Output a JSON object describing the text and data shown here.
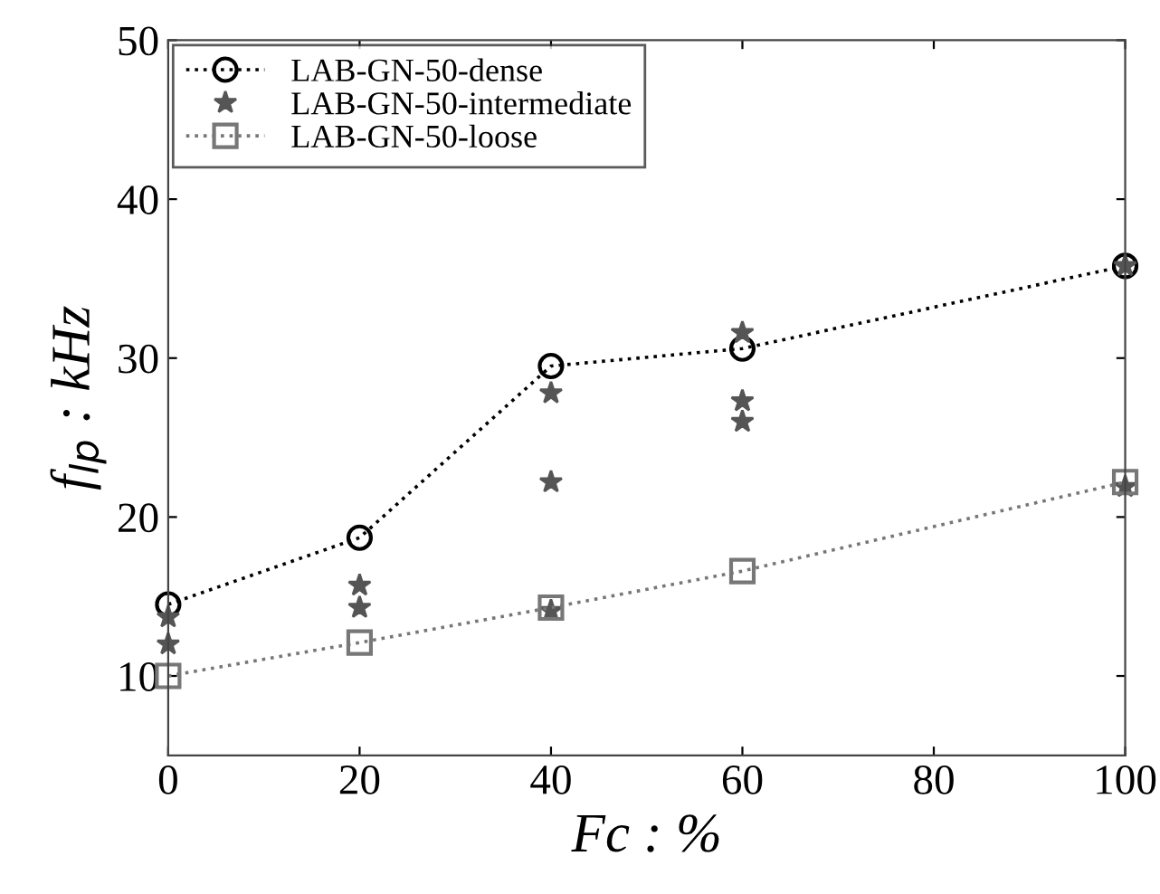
{
  "chart_data": {
    "type": "line",
    "xlabel": "Fc : %",
    "ylabel": "f$_{lp}$ : kHz",
    "xlim": [
      0,
      100
    ],
    "ylim": [
      5,
      50
    ],
    "xticks": [
      0,
      20,
      40,
      60,
      80,
      100
    ],
    "yticks": [
      10,
      20,
      30,
      40,
      50
    ],
    "grid": false,
    "legend": "top left",
    "line_style": "dotted",
    "series": [
      {
        "name": "LAB-GN-50-dense",
        "marker": "circle",
        "color": "#000000",
        "x": [
          0,
          20,
          40,
          60,
          100
        ],
        "values": [
          14.5,
          18.7,
          29.5,
          30.6,
          35.8
        ]
      },
      {
        "name": "LAB-GN-50-intermediate",
        "type": "scatter",
        "marker": "star",
        "color": "#555555",
        "x": [
          0,
          0,
          20,
          20,
          40,
          40,
          40,
          60,
          60,
          60,
          100,
          100
        ],
        "values": [
          13.7,
          12.0,
          15.7,
          14.3,
          27.8,
          22.2,
          14.1,
          31.6,
          27.3,
          26.0,
          21.9,
          35.8
        ]
      },
      {
        "name": "LAB-GN-50-loose",
        "marker": "square",
        "color": "#777777",
        "x": [
          0,
          20,
          40,
          60,
          100
        ],
        "values": [
          10.0,
          12.1,
          14.3,
          16.6,
          22.2
        ]
      }
    ]
  }
}
